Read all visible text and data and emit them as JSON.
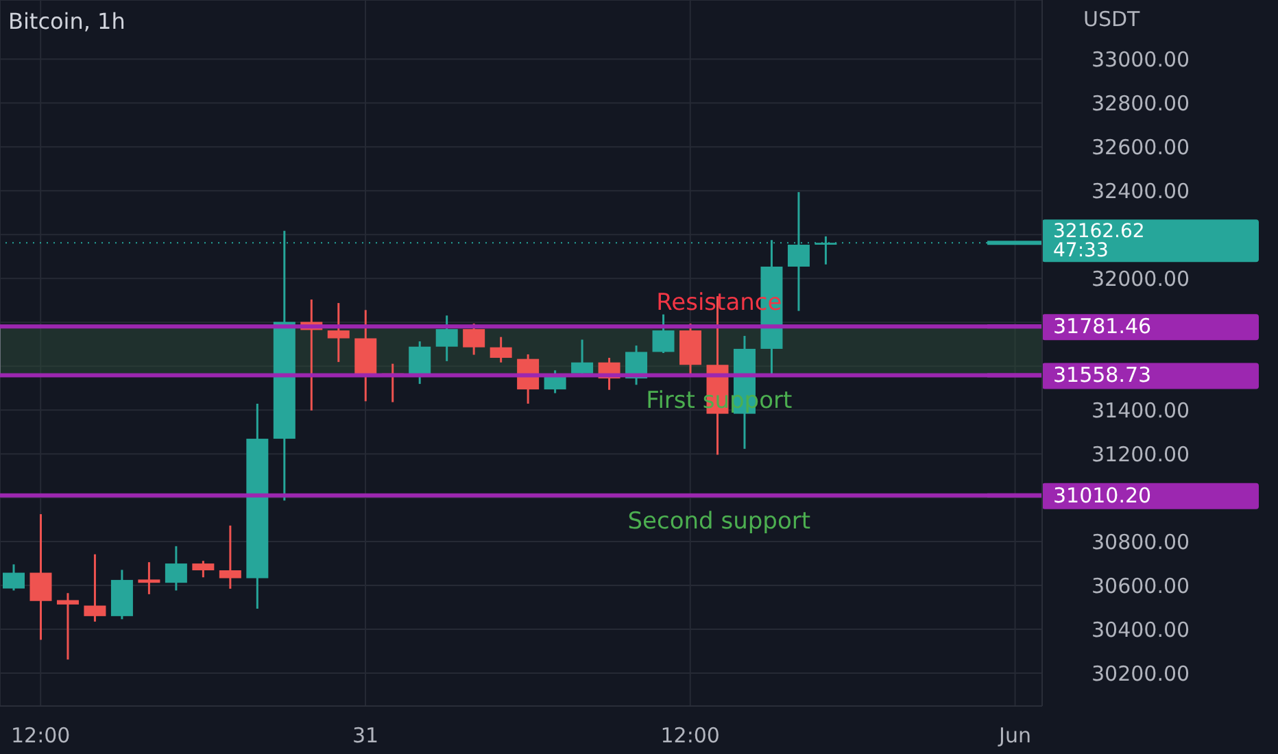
{
  "chart_data": {
    "type": "candlestick",
    "title": "Bitcoin, 1h",
    "ylabel": "USDT",
    "x": [
      "--05-30T11:00",
      "--05-30T12:00",
      "--05-30T13:00",
      "--05-30T14:00",
      "--05-30T15:00",
      "--05-30T16:00",
      "--05-30T17:00",
      "--05-30T18:00",
      "--05-30T19:00",
      "--05-30T20:00",
      "--05-30T21:00",
      "--05-30T22:00",
      "--05-30T23:00",
      "--05-31T00:00",
      "--05-31T01:00",
      "--05-31T02:00",
      "--05-31T03:00",
      "--05-31T04:00",
      "--05-31T05:00",
      "--05-31T06:00",
      "--05-31T07:00",
      "--05-31T08:00",
      "--05-31T09:00",
      "--05-31T10:00",
      "--05-31T11:00",
      "--05-31T12:00",
      "--05-31T13:00",
      "--05-31T14:00",
      "--05-31T15:00",
      "--05-31T16:00",
      "--05-31T17:00"
    ],
    "ohlc": [
      [
        30586,
        30696,
        30577,
        30658
      ],
      [
        30658,
        30925,
        30352,
        30529
      ],
      [
        30533,
        30565,
        30262,
        30513
      ],
      [
        30508,
        30742,
        30435,
        30460
      ],
      [
        30460,
        30671,
        30446,
        30625
      ],
      [
        30627,
        30706,
        30560,
        30612
      ],
      [
        30612,
        30779,
        30577,
        30700
      ],
      [
        30700,
        30712,
        30637,
        30669
      ],
      [
        30669,
        30873,
        30585,
        30633
      ],
      [
        30633,
        31429,
        30494,
        31269
      ],
      [
        31269,
        32217,
        30987,
        31802
      ],
      [
        31802,
        31904,
        31398,
        31765
      ],
      [
        31763,
        31888,
        31619,
        31727
      ],
      [
        31727,
        31856,
        31440,
        31565
      ],
      [
        31567,
        31611,
        31436,
        31556
      ],
      [
        31561,
        31713,
        31519,
        31689
      ],
      [
        31689,
        31831,
        31623,
        31769
      ],
      [
        31769,
        31794,
        31652,
        31686
      ],
      [
        31686,
        31733,
        31617,
        31638
      ],
      [
        31633,
        31654,
        31429,
        31494
      ],
      [
        31494,
        31581,
        31477,
        31565
      ],
      [
        31567,
        31721,
        31560,
        31617
      ],
      [
        31617,
        31638,
        31492,
        31544
      ],
      [
        31544,
        31694,
        31515,
        31665
      ],
      [
        31665,
        31836,
        31660,
        31763
      ],
      [
        31763,
        31794,
        31561,
        31606
      ],
      [
        31606,
        31919,
        31196,
        31383
      ],
      [
        31383,
        31738,
        31223,
        31679
      ],
      [
        31679,
        32175,
        31561,
        32054
      ],
      [
        32054,
        32394,
        31852,
        32154
      ],
      [
        32154,
        32192,
        32064,
        32162.62
      ]
    ],
    "colors": [
      "#26a69a",
      "#ef5350",
      "#ef5350",
      "#ef5350",
      "#26a69a",
      "#ef5350",
      "#26a69a",
      "#ef5350",
      "#ef5350",
      "#26a69a",
      "#26a69a",
      "#ef5350",
      "#ef5350",
      "#ef5350",
      "#ef5350",
      "#26a69a",
      "#26a69a",
      "#ef5350",
      "#ef5350",
      "#ef5350",
      "#26a69a",
      "#26a69a",
      "#ef5350",
      "#26a69a",
      "#26a69a",
      "#ef5350",
      "#ef5350",
      "#26a69a",
      "#26a69a",
      "#26a69a",
      "#26a69a"
    ],
    "xlim": [
      "--05-30T10:30",
      "--06-01T01:00"
    ],
    "xticks": [
      {
        "value": "--05-30T12:00",
        "label": "12:00"
      },
      {
        "value": "--05-31",
        "label": "31"
      },
      {
        "value": "--05-31T12:00",
        "label": "12:00"
      },
      {
        "value": "--06-01",
        "label": "Jun"
      }
    ],
    "ylim": [
      30050,
      33270
    ],
    "yticks": [
      {
        "value": 30200,
        "label": "30200.00"
      },
      {
        "value": 30400,
        "label": "30400.00"
      },
      {
        "value": 30600,
        "label": "30600.00"
      },
      {
        "value": 30800,
        "label": "30800.00"
      },
      {
        "value": 31000,
        "label": null
      },
      {
        "value": 31200,
        "label": "31200.00"
      },
      {
        "value": 31400,
        "label": "31400.00"
      },
      {
        "value": 31600,
        "label": null
      },
      {
        "value": 31800,
        "label": null
      },
      {
        "value": 32000,
        "label": "32000.00"
      },
      {
        "value": 32200,
        "label": null
      },
      {
        "value": 32400,
        "label": "32400.00"
      },
      {
        "value": 32600,
        "label": "32600.00"
      },
      {
        "value": 32800,
        "label": "32800.00"
      },
      {
        "value": 33000,
        "label": "33000.00"
      }
    ],
    "grid": true,
    "bands": [
      {
        "axis": "y",
        "from": 31558.73,
        "to": 31781.46,
        "color": "#2b4a37"
      }
    ],
    "ref_lines": [
      {
        "axis": "y",
        "value": 31781.46,
        "label": "31781.46",
        "color": "#9c27b0"
      },
      {
        "axis": "y",
        "value": 31558.73,
        "label": "31558.73",
        "color": "#9c27b0"
      },
      {
        "axis": "y",
        "value": 31010.2,
        "label": "31010.20",
        "color": "#9c27b0"
      },
      {
        "axis": "y",
        "value": 32162.62,
        "label": "32162.62\n47:33",
        "color": "#26a69a",
        "line_style": "dotted"
      }
    ],
    "annotations": [
      "Resistance",
      "First support",
      "Second support"
    ]
  }
}
